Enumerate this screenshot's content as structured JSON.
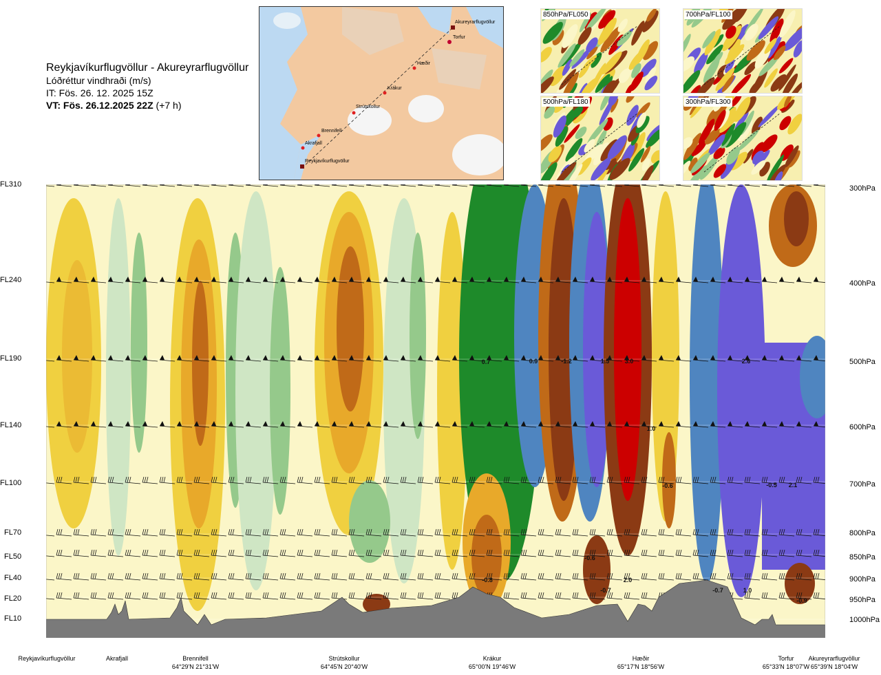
{
  "header": {
    "title": "Reykjavíkurflugvöllur - Akureyrarflugvöllur",
    "subtitle": "Lóðréttur vindhraði (m/s)",
    "it": "IT: Fös. 26. 12. 2025 15Z",
    "vt_bold": "VT: Fös. 26.12.2025 22Z",
    "vt_rest": " (+7 h)"
  },
  "map": {
    "stations": [
      "Akureyrarflugvöllur",
      "Torfur",
      "Hæðir",
      "Krákur",
      "Strútskollur",
      "Brennifell",
      "Akrafjall",
      "Reykjavíkurflugvöllur"
    ]
  },
  "insets": [
    {
      "label": "850hPa/FL050"
    },
    {
      "label": "700hPa/FL100"
    },
    {
      "label": "500hPa/FL180"
    },
    {
      "label": "300hPa/FL300"
    }
  ],
  "levels": [
    {
      "fl": "FL310",
      "hpa": "300hPa"
    },
    {
      "fl": "FL240",
      "hpa": "400hPa"
    },
    {
      "fl": "FL190",
      "hpa": "500hPa"
    },
    {
      "fl": "FL140",
      "hpa": "600hPa"
    },
    {
      "fl": "FL100",
      "hpa": "700hPa"
    },
    {
      "fl": "FL70",
      "hpa": "800hPa"
    },
    {
      "fl": "FL50",
      "hpa": "850hPa"
    },
    {
      "fl": "FL40",
      "hpa": "900hPa"
    },
    {
      "fl": "FL20",
      "hpa": "950hPa"
    },
    {
      "fl": "FL10",
      "hpa": "1000hPa"
    }
  ],
  "locations": [
    {
      "name": "Reykjavíkurflugvöllur",
      "coord": ""
    },
    {
      "name": "Akrafjall",
      "coord": ""
    },
    {
      "name": "Brennifell",
      "coord": "64°29'N 21°31'W"
    },
    {
      "name": "Strútskollur",
      "coord": "64°45'N 20°40'W"
    },
    {
      "name": "Krákur",
      "coord": "65°00'N 19°46'W"
    },
    {
      "name": "Hæðir",
      "coord": "65°17'N 18°56'W"
    },
    {
      "name": "Torfur",
      "coord": "65°33'N 18°07'W"
    },
    {
      "name": "Akureyrarflugvöllur",
      "coord": "65°39'N 18°04'W"
    }
  ],
  "value_labels": [
    "0.7",
    "0.9",
    "-1.2",
    "1.5",
    "3.0",
    "2.6",
    "1.0",
    "-0.6",
    "-0.5",
    "2.1",
    "-0.6",
    "-0.8",
    "-0.7",
    "2.0",
    "-0.7",
    "1.0",
    "-0.9"
  ],
  "colors": {
    "strong_down": "#8b3a14",
    "down": "#c06a18",
    "weak_down": "#e8a92a",
    "slight_down": "#f0d040",
    "neutral": "#fbf6c8",
    "slight_up": "#cfe6c4",
    "weak_up": "#95c98b",
    "up": "#1e8a2a",
    "strong_up": "#4f85c0",
    "very_strong_up": "#6a5ad8",
    "extreme_up": "#cc0000",
    "terrain": "#7a7a7a"
  }
}
